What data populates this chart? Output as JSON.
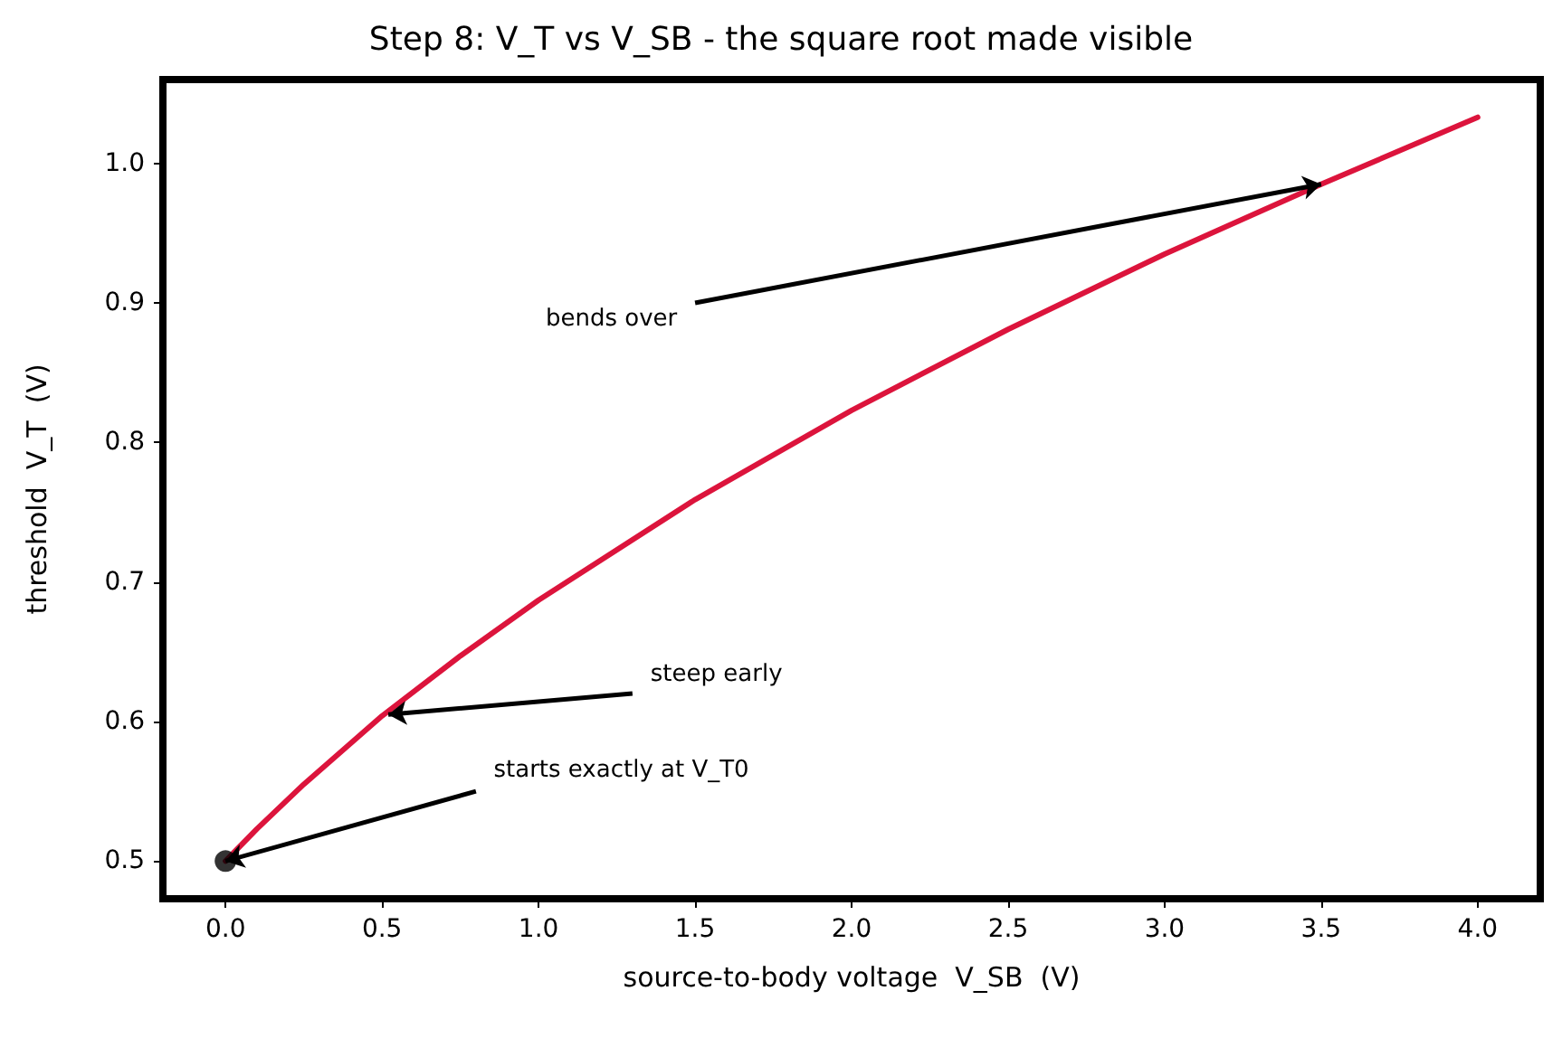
{
  "chart_data": {
    "type": "line",
    "title": "Step 8: V_T vs V_SB - the square root made visible",
    "xlabel": "source-to-body voltage  V_SB  (V)",
    "ylabel": "threshold  V_T  (V)",
    "series": [
      {
        "color": "#dc143c",
        "marker": "none",
        "x": [
          0,
          0.1,
          0.25,
          0.5,
          0.75,
          1.0,
          1.5,
          2.0,
          2.5,
          3.0,
          3.5,
          4.0
        ],
        "values": [
          0.5,
          0.523,
          0.555,
          0.604,
          0.647,
          0.687,
          0.759,
          0.823,
          0.881,
          0.935,
          0.985,
          1.033
        ]
      },
      {
        "type": "scatter",
        "marker": "circle",
        "color": "#000000",
        "x": [
          0
        ],
        "values": [
          0.5
        ]
      }
    ],
    "annotations": [
      {
        "text": "bends over",
        "x": 3.5,
        "y": 0.985
      },
      {
        "text": "steep early",
        "x": 0.52,
        "y": 0.605
      },
      {
        "text": "starts exactly at V_T0",
        "x": 0,
        "y": 0.5
      }
    ],
    "xlim": [
      -0.2,
      4.2
    ],
    "xticks": [
      {
        "value": 0,
        "label": "0.0"
      },
      0.5,
      {
        "value": 1,
        "label": "1.0"
      },
      1.5,
      {
        "value": 2,
        "label": "2.0"
      },
      2.5,
      {
        "value": 3,
        "label": "3.0"
      },
      3.5,
      {
        "value": 4,
        "label": "4.0"
      }
    ],
    "ylim": [
      0.473,
      1.06
    ],
    "yticks": [
      0.5,
      0.6,
      0.7,
      0.8,
      0.9,
      {
        "value": 1,
        "label": "1.0"
      }
    ],
    "grid": false,
    "line_style": "solid"
  }
}
